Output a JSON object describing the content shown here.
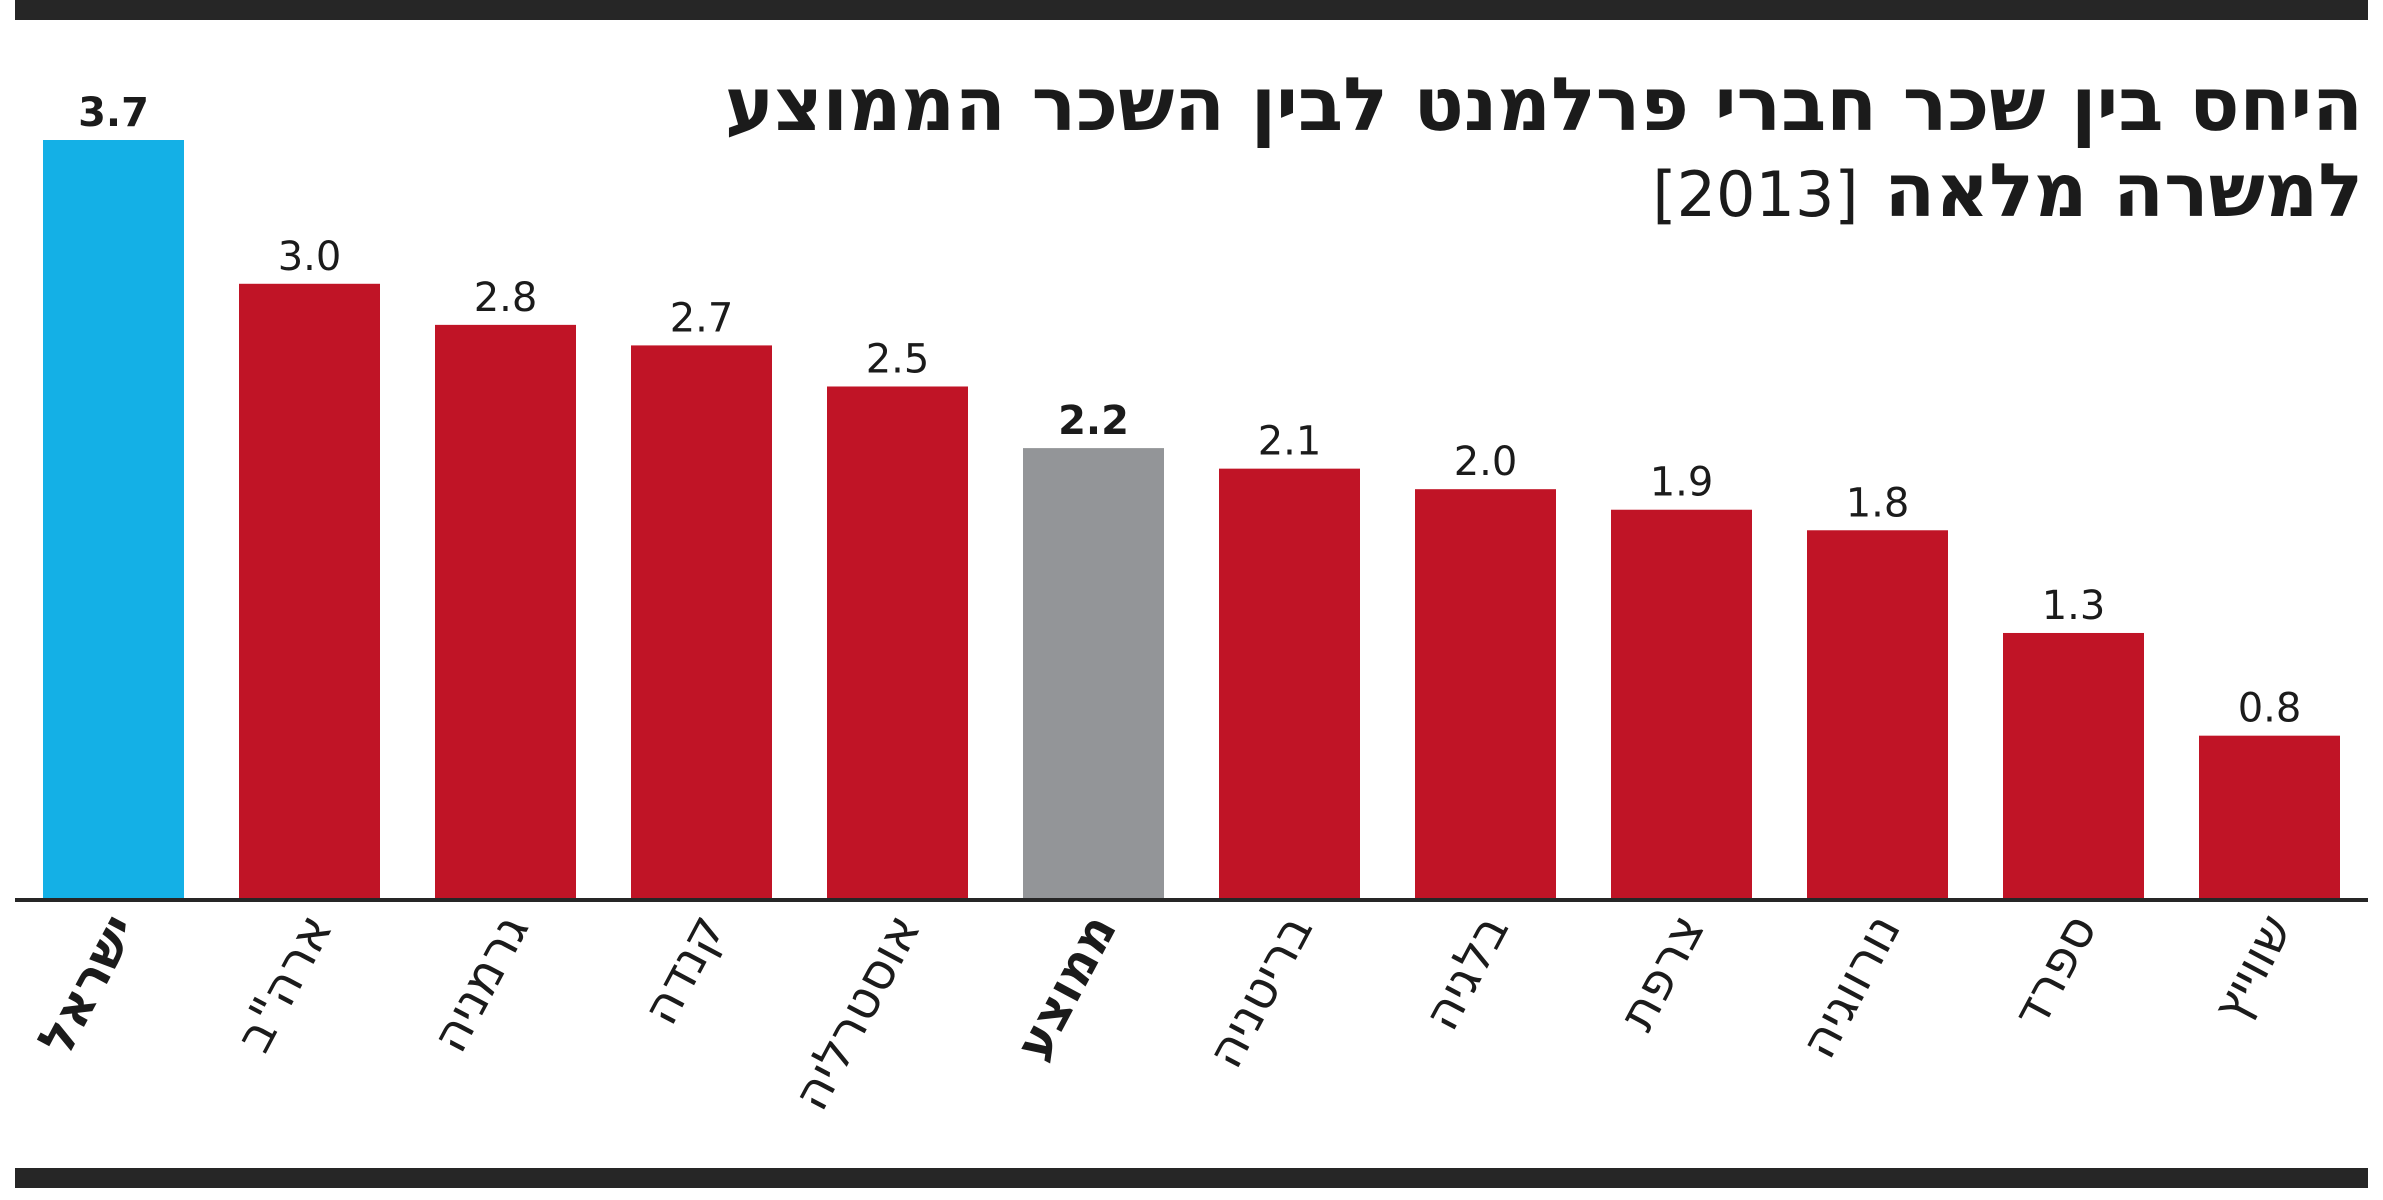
{
  "title": {
    "line1": "היחס בין שכר חברי פרלמנט לבין השכר הממוצע",
    "line2": "למשרה מלאה",
    "year": "[2013]"
  },
  "colors": {
    "highlight": "#14b0e6",
    "average": "#939598",
    "default": "#c01426",
    "text": "#1b1b1b",
    "rule": "#262626"
  },
  "chart_data": {
    "type": "bar",
    "title": "היחס בין שכר חברי פרלמנט לבין השכר הממוצע למשרה מלאה [2013]",
    "categories": [
      "ישראל",
      "ארה\"ב",
      "גרמניה",
      "קנדה",
      "אוסטרליה",
      "ממוצע",
      "בריטניה",
      "בלגיה",
      "צרפת",
      "נורווגיה",
      "ספרד",
      "שווייץ"
    ],
    "values": [
      3.7,
      3.0,
      2.8,
      2.7,
      2.5,
      2.2,
      2.1,
      2.0,
      1.9,
      1.8,
      1.3,
      0.8
    ],
    "value_labels": [
      "3.7",
      "3.0",
      "2.8",
      "2.7",
      "2.5",
      "2.2",
      "2.1",
      "2.0",
      "1.9",
      "1.8",
      "1.3",
      "0.8"
    ],
    "bar_colors": [
      "highlight",
      "default",
      "default",
      "default",
      "default",
      "average",
      "default",
      "default",
      "default",
      "default",
      "default",
      "default"
    ],
    "bold_categories": [
      "ישראל",
      "ממוצע"
    ],
    "ylim": [
      0,
      3.7
    ],
    "grid": false,
    "legend": "none"
  }
}
